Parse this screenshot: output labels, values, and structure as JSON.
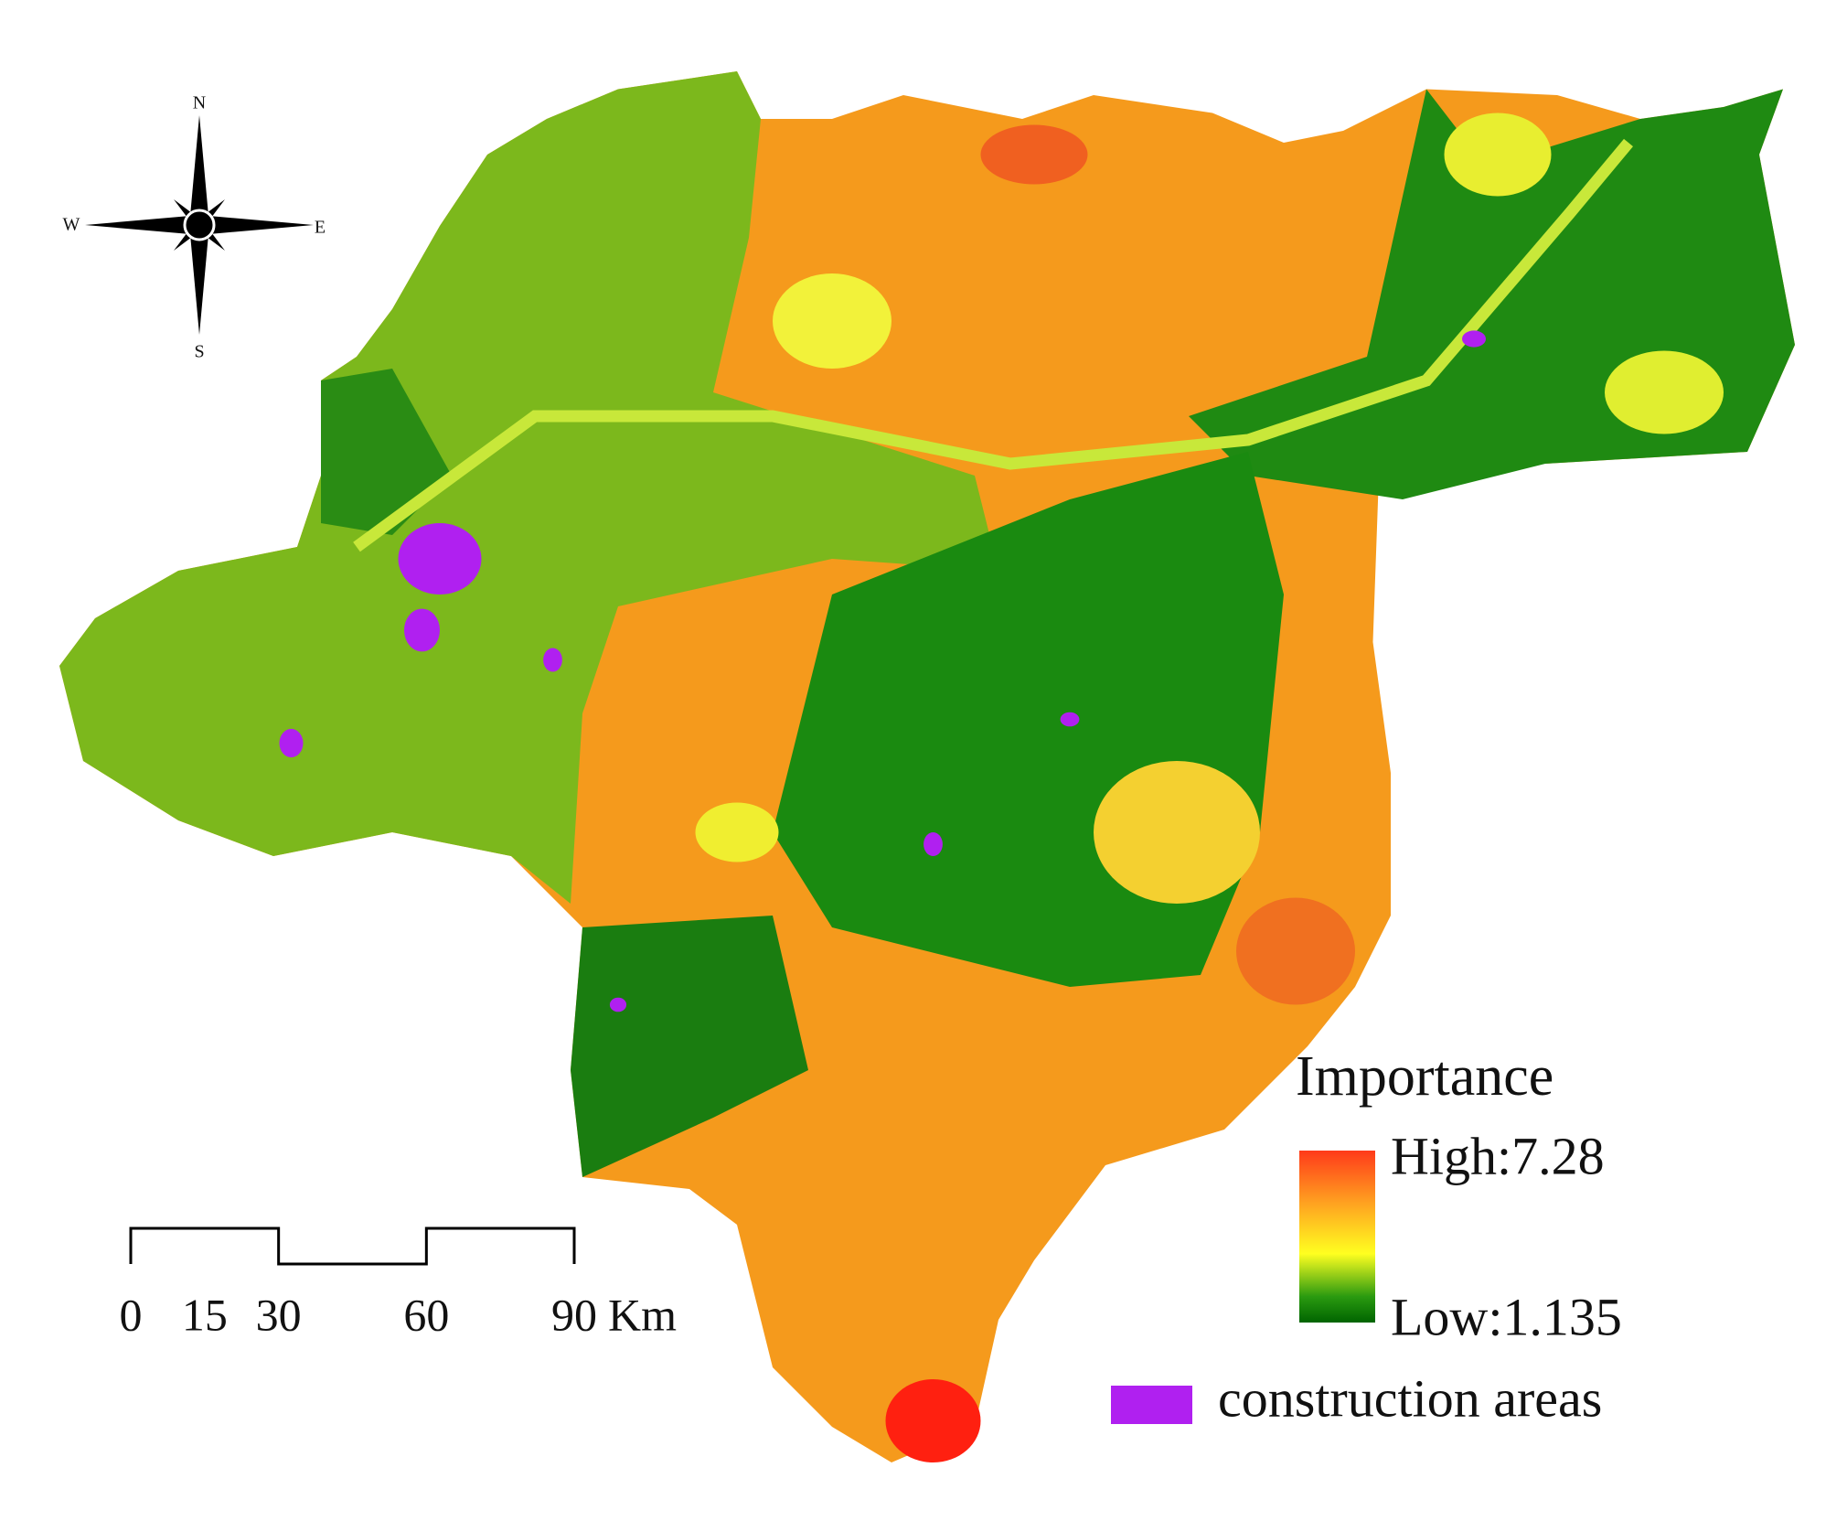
{
  "compass": {
    "north": "N",
    "south": "S",
    "west": "W",
    "east": "E"
  },
  "scale_bar": {
    "ticks": [
      0,
      15,
      30,
      60,
      90
    ],
    "unit": "Km"
  },
  "legend": {
    "title": "Importance",
    "high": "High:7.28",
    "low": "Low:1.135",
    "construction": "construction areas"
  }
}
